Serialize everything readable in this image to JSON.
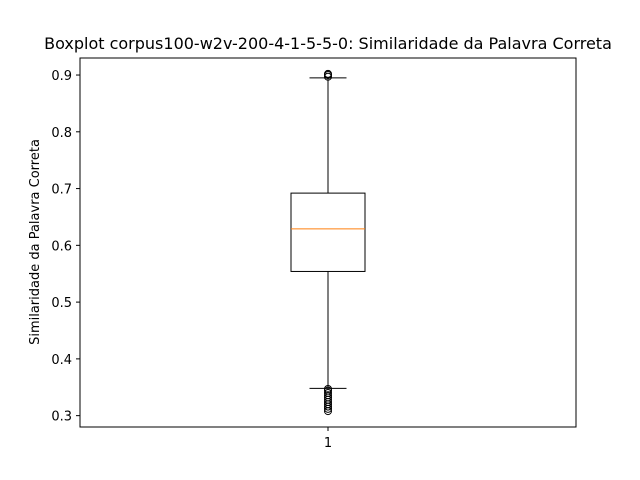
{
  "chart_data": {
    "type": "boxplot",
    "title": "Boxplot corpus100-w2v-200-4-1-5-5-0: Similaridade da Palavra Correta",
    "xlabel": "",
    "ylabel": "Similaridade da Palavra Correta",
    "ylim": [
      0.28,
      0.93
    ],
    "yticks": [
      0.3,
      0.4,
      0.5,
      0.6,
      0.7,
      0.8,
      0.9
    ],
    "ytick_labels": [
      "0.3",
      "0.4",
      "0.5",
      "0.6",
      "0.7",
      "0.8",
      "0.9"
    ],
    "categories": [
      "1"
    ],
    "grid": false,
    "boxes": [
      {
        "label": "1",
        "whisker_low": 0.348,
        "q1": 0.554,
        "median": 0.629,
        "q3": 0.692,
        "whisker_high": 0.895,
        "outliers": [
          0.308,
          0.312,
          0.316,
          0.32,
          0.324,
          0.328,
          0.332,
          0.336,
          0.34,
          0.344,
          0.347,
          0.897,
          0.9,
          0.902
        ]
      }
    ],
    "colors": {
      "box": "#000000",
      "median": "#ff7f0e",
      "background": "#ffffff"
    }
  }
}
